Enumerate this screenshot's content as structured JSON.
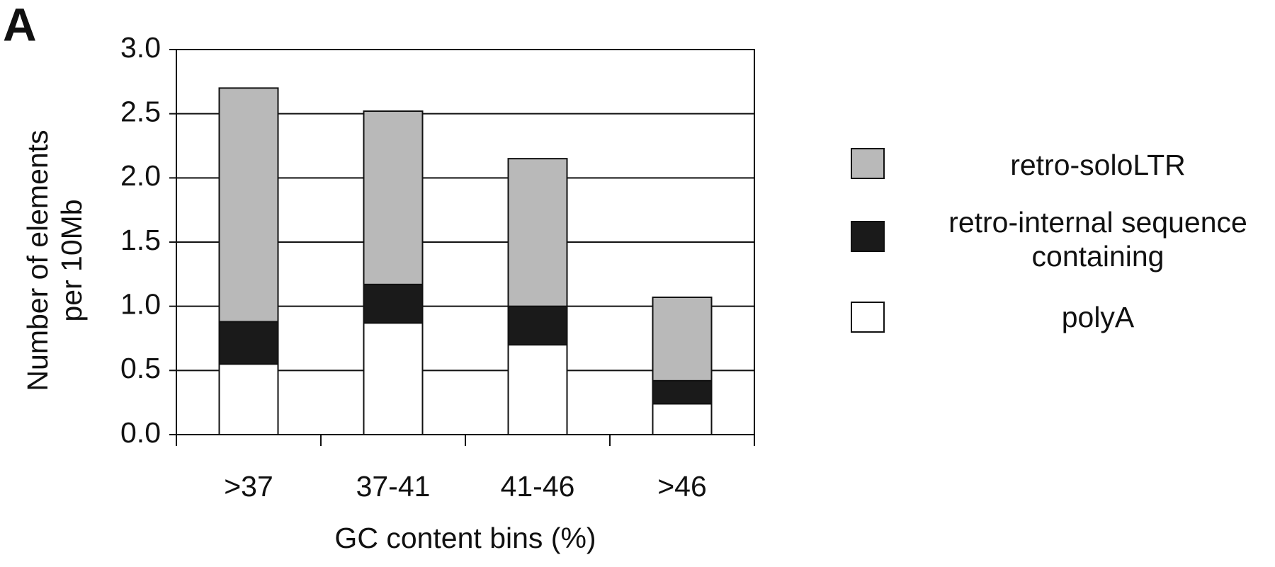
{
  "chart_data": {
    "type": "bar",
    "stacked": true,
    "panel_label": "A",
    "xlabel": "GC content bins (%)",
    "ylabel": "Number of elements per 10Mb",
    "categories": [
      ">37",
      "37-41",
      "41-46",
      ">46"
    ],
    "series": [
      {
        "name": "polyA",
        "color": "#ffffff",
        "values": [
          0.55,
          0.87,
          0.7,
          0.24
        ]
      },
      {
        "name": "retro-internal sequence containing",
        "color": "#1a1a1a",
        "values": [
          0.33,
          0.3,
          0.3,
          0.18
        ]
      },
      {
        "name": "retro-soloLTR",
        "color": "#b9b9b9",
        "values": [
          1.82,
          1.35,
          1.15,
          0.65
        ]
      }
    ],
    "ylim": [
      0,
      3
    ],
    "yticks": [
      {
        "value": 0,
        "label": "0.0"
      },
      {
        "value": 0.5,
        "label": "0.5"
      },
      {
        "value": 1,
        "label": "1.0"
      },
      {
        "value": 1.5,
        "label": "1.5"
      },
      {
        "value": 2,
        "label": "2.0"
      },
      {
        "value": 2.5,
        "label": "2.5"
      },
      {
        "value": 3,
        "label": "3.0"
      }
    ],
    "grid": true
  }
}
